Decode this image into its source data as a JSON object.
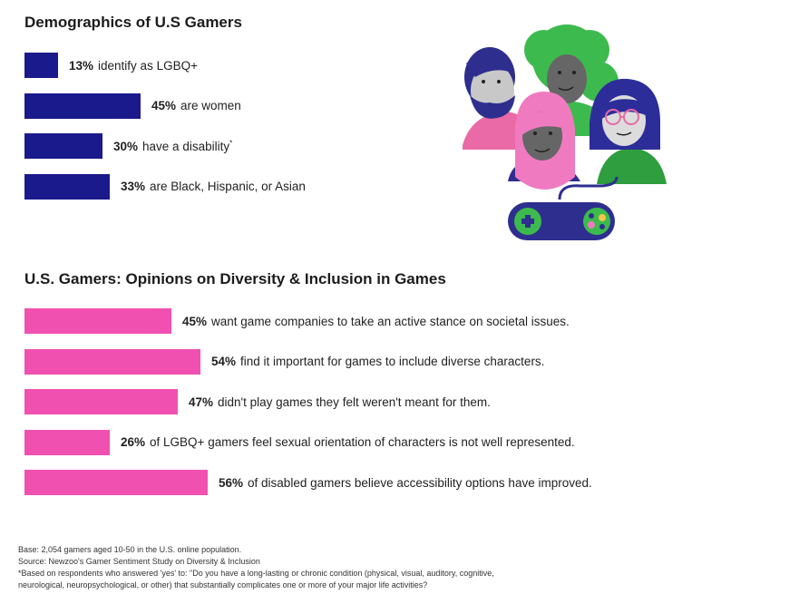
{
  "colors": {
    "demographics": "#1a1a8c",
    "opinions": "#f050b0"
  },
  "chart_data": [
    {
      "type": "bar",
      "orientation": "horizontal",
      "title": "Demographics of U.S Gamers",
      "categories": [
        "identify as LGBQ+",
        "are women",
        "have a disability*",
        "are Black, Hispanic, or Asian"
      ],
      "values": [
        13,
        45,
        30,
        33
      ],
      "value_labels": [
        "13%",
        "45%",
        "30%",
        "33%"
      ],
      "unit": "%",
      "grid": false,
      "legend": "none"
    },
    {
      "type": "bar",
      "orientation": "horizontal",
      "title": "U.S. Gamers: Opinions on Diversity & Inclusion in Games",
      "categories": [
        "want game companies to take an active stance on societal issues.",
        "find it important for games to include diverse characters.",
        "didn't play games they felt weren't meant for them.",
        "of LGBQ+ gamers feel sexual orientation of characters is not well represented.",
        "of disabled gamers believe accessibility options have improved."
      ],
      "values": [
        45,
        54,
        47,
        26,
        56
      ],
      "value_labels": [
        "45%",
        "54%",
        "47%",
        "26%",
        "56%"
      ],
      "unit": "%",
      "grid": false,
      "legend": "none"
    }
  ],
  "footer": {
    "line1": "Base: 2,054 gamers aged 10-50 in the U.S. online population.",
    "line2": "Source: Newzoo's Gamer Sentiment Study on Diversity & Inclusion",
    "line3": "*Based on respondents who answered 'yes' to: \"Do you have a long-lasting or chronic condition (physical, visual, auditory, cognitive,",
    "line4": "neurological, neuropsychological, or other) that substantially complicates one or more of your major life activities?"
  },
  "illustration": {
    "icons": [
      "person-bearded-icon",
      "person-curly-hair-icon",
      "person-glasses-icon",
      "person-hijab-icon",
      "gamepad-icon"
    ]
  }
}
